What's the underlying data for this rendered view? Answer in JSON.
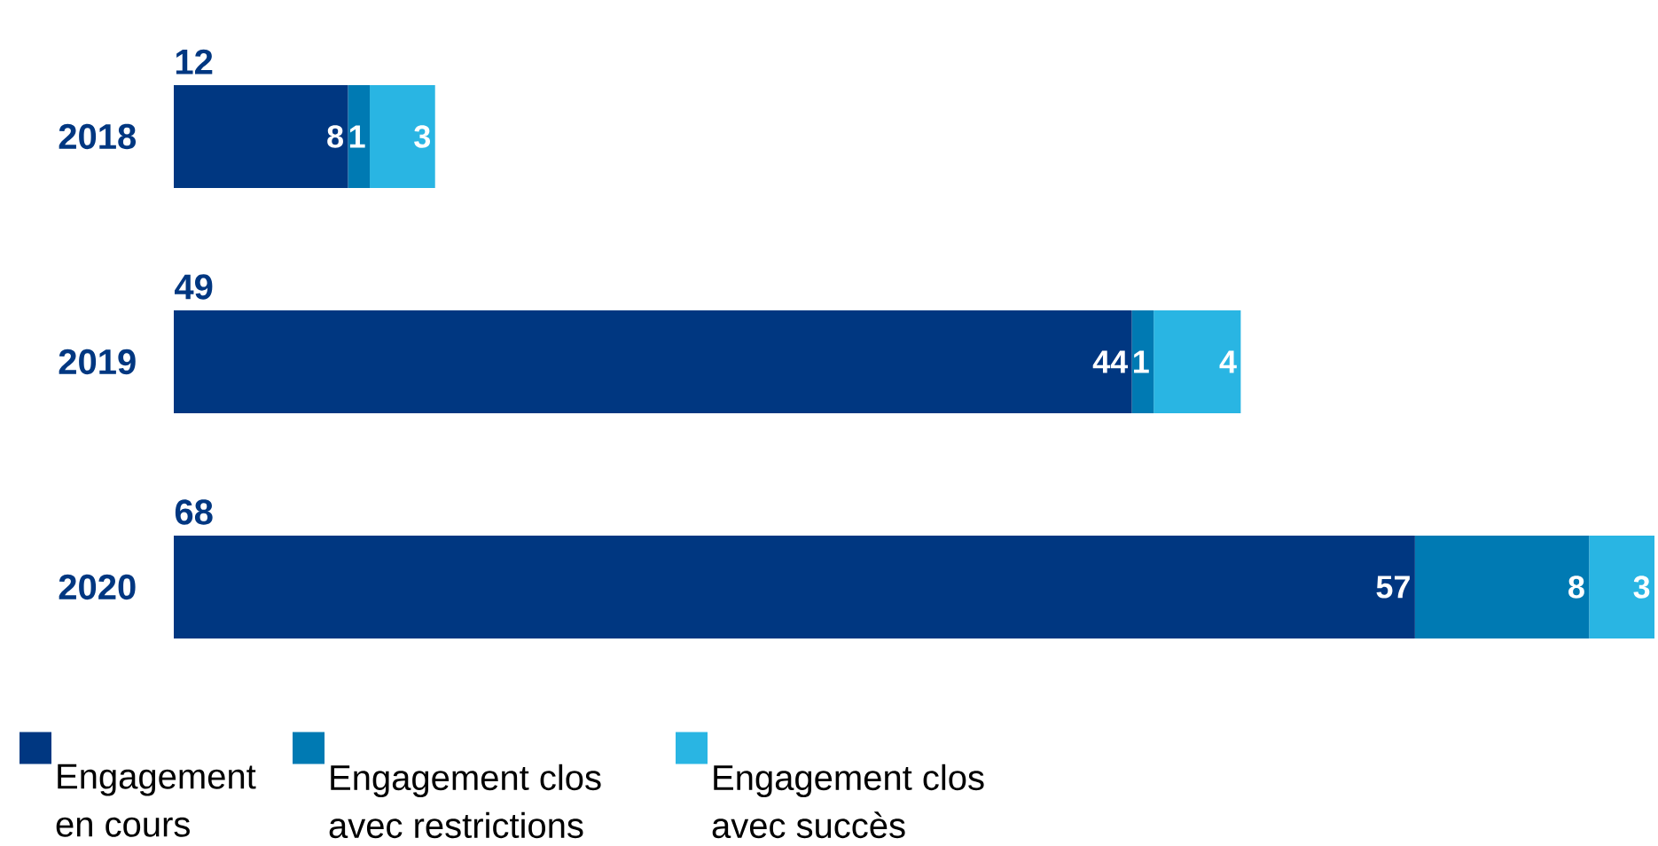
{
  "chart_data": {
    "type": "bar",
    "orientation": "horizontal",
    "stacked": true,
    "data_labels": true,
    "legend": "bottom left",
    "categories": [
      "2018",
      "2019",
      "2020"
    ],
    "series": [
      {
        "name": "Engagement en cours",
        "color": "#003781",
        "values": [
          8,
          44,
          57
        ]
      },
      {
        "name": "Engagement clos avec restrictions",
        "color": "#007ab3",
        "values": [
          1,
          1,
          8
        ]
      },
      {
        "name": "Engagement clos avec succès",
        "color": "#29b5e3",
        "values": [
          3,
          4,
          3
        ]
      }
    ],
    "totals": [
      "12",
      "49",
      "68"
    ]
  }
}
